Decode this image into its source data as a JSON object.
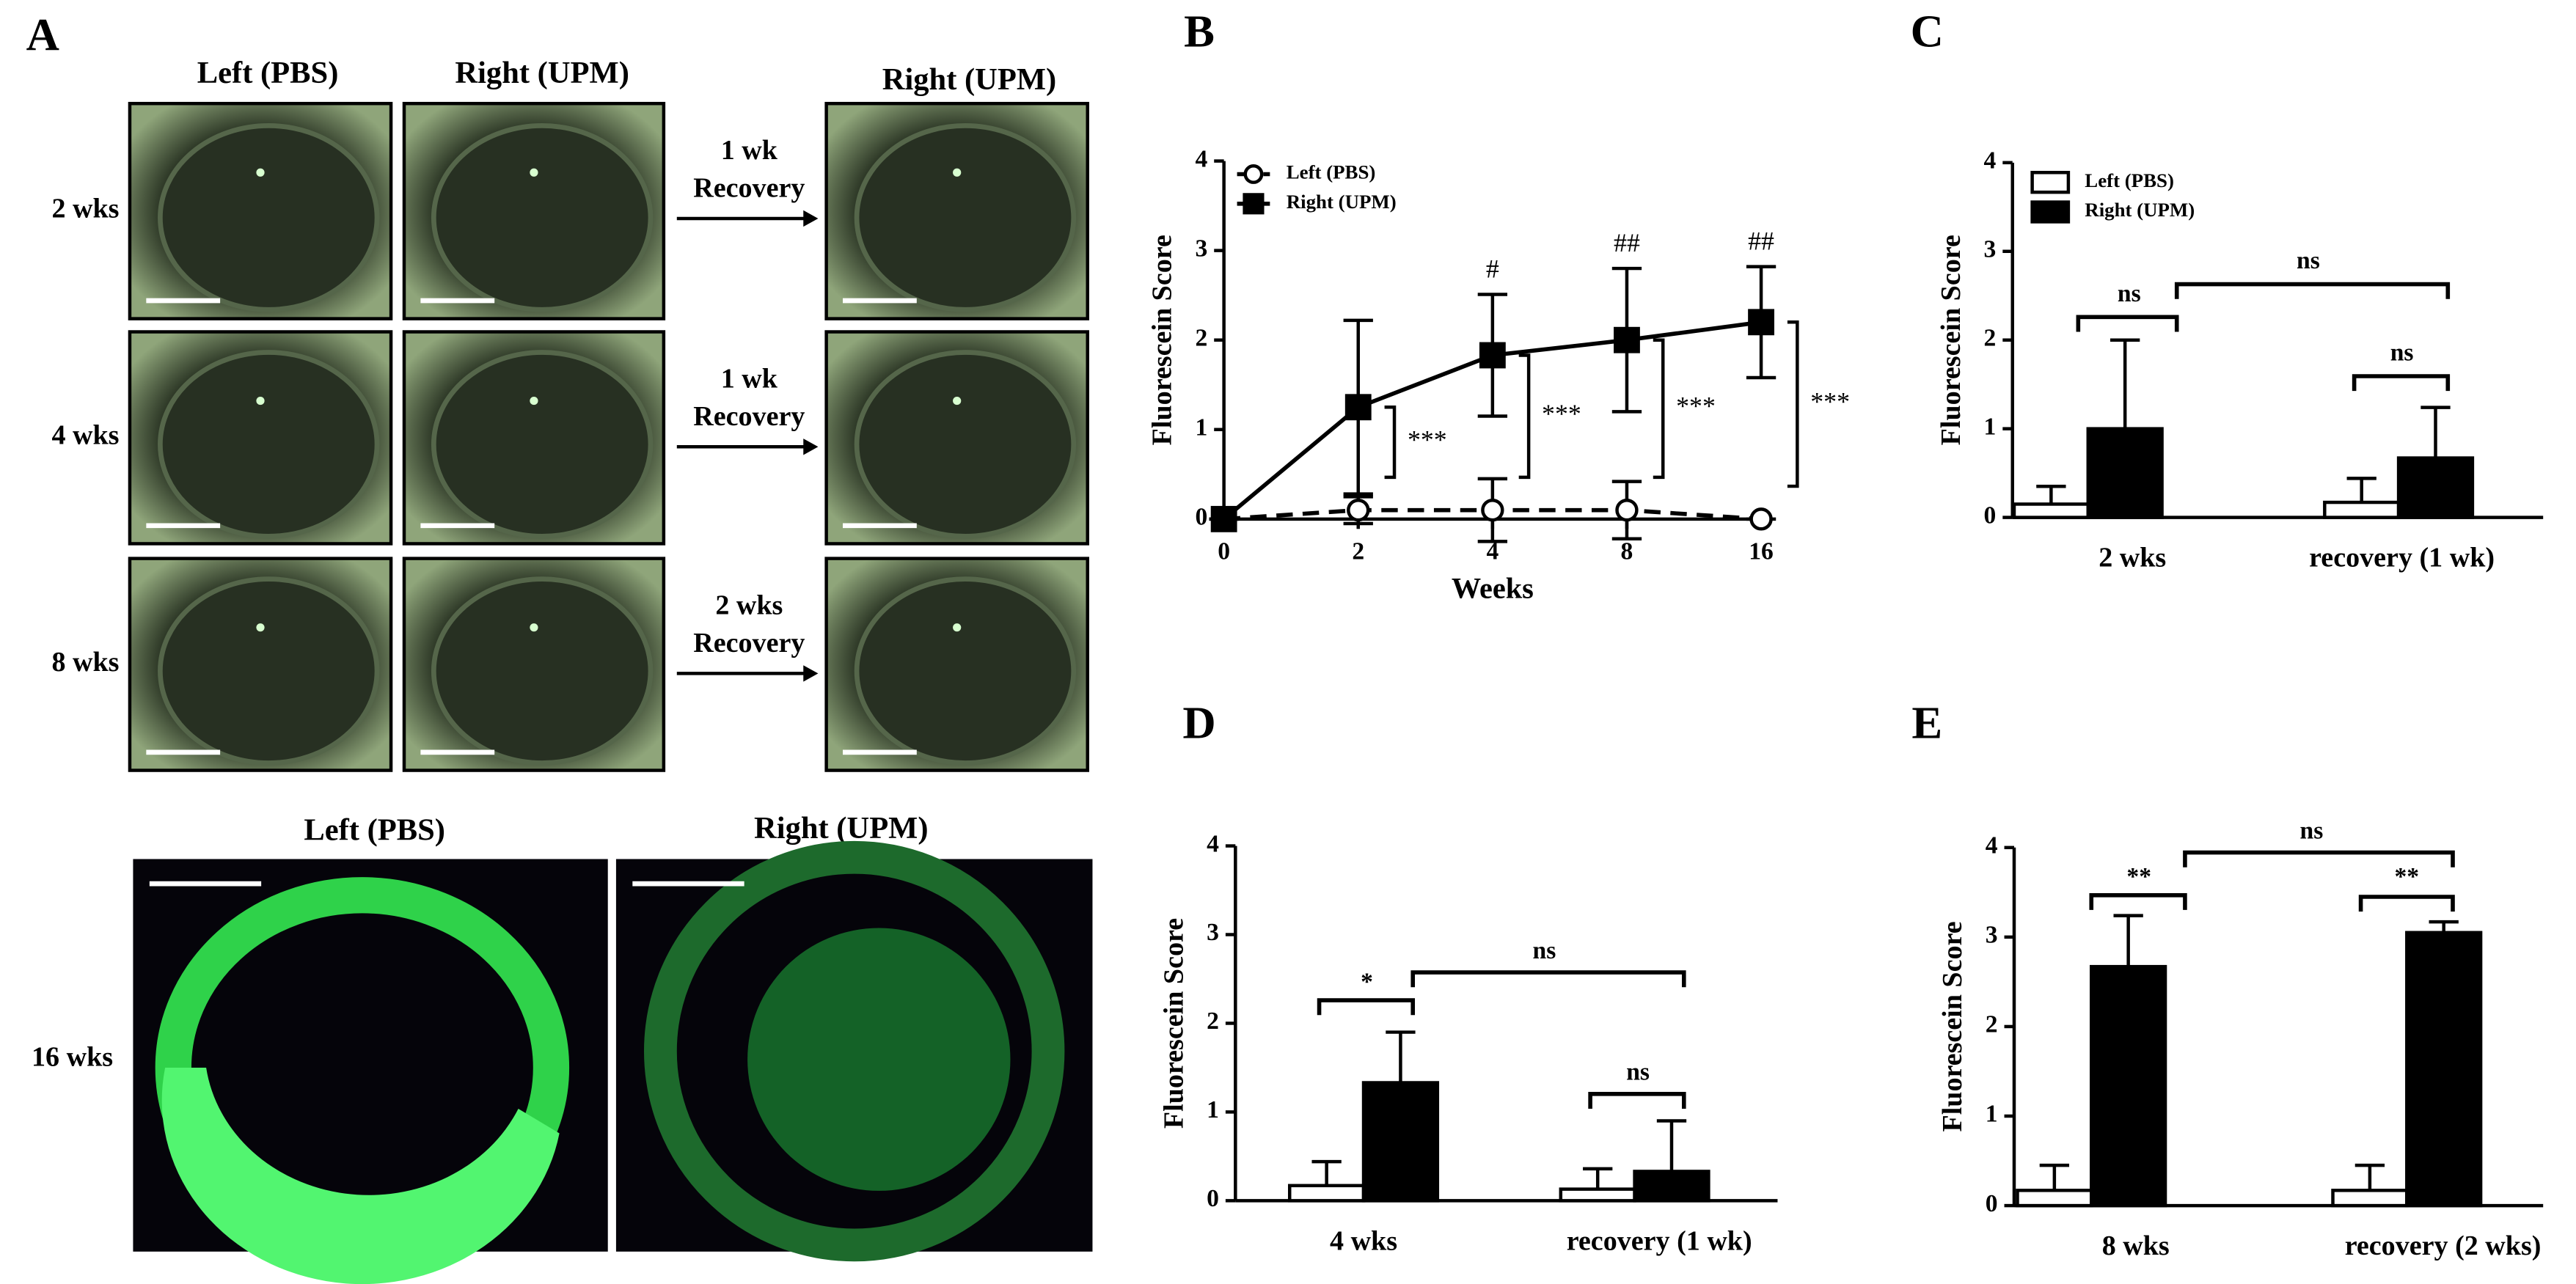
{
  "panel_a": {
    "label": "A",
    "columns": [
      "Left (PBS)",
      "Right (UPM)",
      "Right (UPM)"
    ],
    "rows": [
      "2 wks",
      "4 wks",
      "8 wks"
    ],
    "recovery": [
      [
        "1 wk",
        "Recovery"
      ],
      [
        "1 wk",
        "Recovery"
      ],
      [
        "2 wks",
        "Recovery"
      ]
    ],
    "bottom_columns": [
      "Left (PBS)",
      "Right (UPM)"
    ],
    "bottom_row": "16 wks"
  },
  "chart_data": [
    {
      "panel": "B",
      "type": "line",
      "x_label": "Weeks",
      "y_label": "Fluorescein Score",
      "categories": [
        "0",
        "2",
        "4",
        "8",
        "16"
      ],
      "series": [
        {
          "name": "Left (PBS)",
          "color": "#ffffff",
          "marker": "circle",
          "line_style": "dashed",
          "values": [
            0,
            0.1,
            0.1,
            0.1,
            0
          ],
          "errors": [
            0,
            0.15,
            0.35,
            0.32,
            0
          ]
        },
        {
          "name": "Right (UPM)",
          "color": "#000000",
          "marker": "square",
          "line_style": "solid",
          "values": [
            0,
            1.25,
            1.83,
            2.0,
            2.2
          ],
          "errors": [
            0,
            0.97,
            0.68,
            0.8,
            0.62
          ]
        }
      ],
      "ylim": [
        0,
        4
      ],
      "yticks": [
        0,
        1,
        2,
        3,
        4
      ],
      "legend": "upper left",
      "annotations": [
        "#",
        "##",
        "##"
      ],
      "comparisons": [
        "***",
        "***",
        "***",
        "***"
      ]
    },
    {
      "panel": "C",
      "type": "bar",
      "y_label": "Fluorescein Score",
      "categories": [
        "2 wks",
        "recovery (1 wk)"
      ],
      "series": [
        {
          "name": "Left (PBS)",
          "color": "#ffffff",
          "values": [
            0.15,
            0.17
          ],
          "errors": [
            0.2,
            0.27
          ]
        },
        {
          "name": "Right (UPM)",
          "color": "#000000",
          "values": [
            1.0,
            0.67
          ],
          "errors": [
            1.0,
            0.57
          ]
        }
      ],
      "ylim": [
        0,
        4
      ],
      "yticks": [
        0,
        1,
        2,
        3,
        4
      ],
      "legend": "upper left",
      "annotations": [
        "ns",
        "ns",
        "ns"
      ]
    },
    {
      "panel": "D",
      "type": "bar",
      "y_label": "Fluorescein Score",
      "categories": [
        "4 wks",
        "recovery (1 wk)"
      ],
      "series": [
        {
          "name": "Left (PBS)",
          "color": "#ffffff",
          "values": [
            0.17,
            0.13
          ],
          "errors": [
            0.27,
            0.23
          ]
        },
        {
          "name": "Right (UPM)",
          "color": "#000000",
          "values": [
            1.33,
            0.33
          ],
          "errors": [
            0.57,
            0.57
          ]
        }
      ],
      "ylim": [
        0,
        4
      ],
      "yticks": [
        0,
        1,
        2,
        3,
        4
      ],
      "annotations": [
        "*",
        "ns",
        "ns"
      ]
    },
    {
      "panel": "E",
      "type": "bar",
      "y_label": "Fluorescein Score",
      "categories": [
        "8 wks",
        "recovery (2 wks)"
      ],
      "series": [
        {
          "name": "Left (PBS)",
          "color": "#ffffff",
          "values": [
            0.17,
            0.17
          ],
          "errors": [
            0.28,
            0.28
          ]
        },
        {
          "name": "Right (UPM)",
          "color": "#000000",
          "values": [
            2.67,
            3.05
          ],
          "errors": [
            0.57,
            0.12
          ]
        }
      ],
      "ylim": [
        0,
        4
      ],
      "yticks": [
        0,
        1,
        2,
        3,
        4
      ],
      "annotations": [
        "**",
        "**",
        "ns"
      ]
    }
  ]
}
